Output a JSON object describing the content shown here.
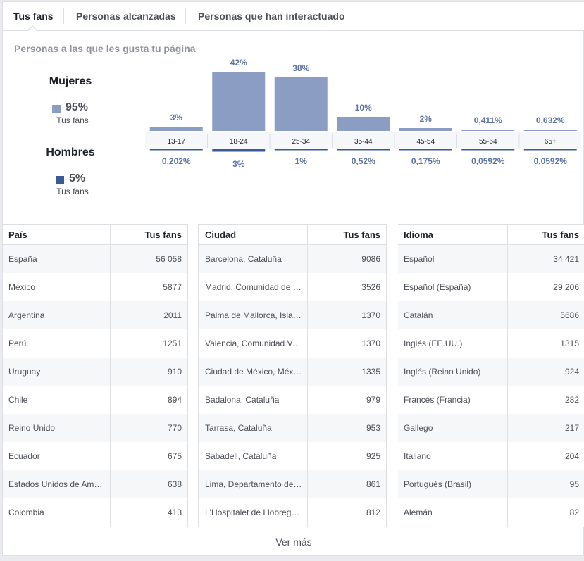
{
  "tabs": [
    {
      "label": "Tus fans",
      "active": true
    },
    {
      "label": "Personas alcanzadas",
      "active": false
    },
    {
      "label": "Personas que han interactuado",
      "active": false
    }
  ],
  "section_title": "Personas a las que les gusta tu página",
  "women": {
    "label": "Mujeres",
    "value": "95%",
    "sub": "Tus fans",
    "color": "#8b9dc3"
  },
  "men": {
    "label": "Hombres",
    "value": "5%",
    "sub": "Tus fans",
    "color": "#3b5998"
  },
  "chart_data": {
    "type": "bar",
    "categories": [
      "13-17",
      "18-24",
      "25-34",
      "35-44",
      "45-54",
      "55-64",
      "65+"
    ],
    "series": [
      {
        "name": "Mujeres",
        "values": [
          3,
          42,
          38,
          10,
          2,
          0.411,
          0.632
        ],
        "labels": [
          "3%",
          "42%",
          "38%",
          "10%",
          "2%",
          "0,411%",
          "0,632%"
        ],
        "color": "#8b9dc3"
      },
      {
        "name": "Hombres",
        "values": [
          0.202,
          3,
          1,
          0.52,
          0.175,
          0.0592,
          0.0592
        ],
        "labels": [
          "0,202%",
          "3%",
          "1%",
          "0,52%",
          "0,175%",
          "0,0592%",
          "0,0592%"
        ],
        "color": "#3b5998"
      }
    ],
    "ylim": [
      0,
      42
    ]
  },
  "tables": [
    {
      "col1": "País",
      "col2": "Tus fans",
      "rows": [
        [
          "España",
          "56 058"
        ],
        [
          "México",
          "5877"
        ],
        [
          "Argentina",
          "2011"
        ],
        [
          "Perú",
          "1251"
        ],
        [
          "Uruguay",
          "910"
        ],
        [
          "Chile",
          "894"
        ],
        [
          "Reino Unido",
          "770"
        ],
        [
          "Ecuador",
          "675"
        ],
        [
          "Estados Unidos de Amé…",
          "638"
        ],
        [
          "Colombia",
          "413"
        ]
      ]
    },
    {
      "col1": "Ciudad",
      "col2": "Tus fans",
      "rows": [
        [
          "Barcelona, Cataluña",
          "9086"
        ],
        [
          "Madrid, Comunidad de M…",
          "3526"
        ],
        [
          "Palma de Mallorca, Islas…",
          "1370"
        ],
        [
          "Valencia, Comunidad Va…",
          "1370"
        ],
        [
          "Ciudad de México, México",
          "1335"
        ],
        [
          "Badalona, Cataluña",
          "979"
        ],
        [
          "Tarrasa, Cataluña",
          "953"
        ],
        [
          "Sabadell, Cataluña",
          "925"
        ],
        [
          "Lima, Departamento de …",
          "861"
        ],
        [
          "L'Hospitalet de Llobregat…",
          "812"
        ]
      ]
    },
    {
      "col1": "Idioma",
      "col2": "Tus fans",
      "rows": [
        [
          "Español",
          "34 421"
        ],
        [
          "Español (España)",
          "29 206"
        ],
        [
          "Catalán",
          "5686"
        ],
        [
          "Inglés (EE.UU.)",
          "1315"
        ],
        [
          "Inglés (Reino Unido)",
          "924"
        ],
        [
          "Francés (Francia)",
          "282"
        ],
        [
          "Gallego",
          "217"
        ],
        [
          "Italiano",
          "204"
        ],
        [
          "Portugués (Brasil)",
          "95"
        ],
        [
          "Alemán",
          "82"
        ]
      ]
    }
  ],
  "footer": {
    "more_label": "Ver más"
  }
}
